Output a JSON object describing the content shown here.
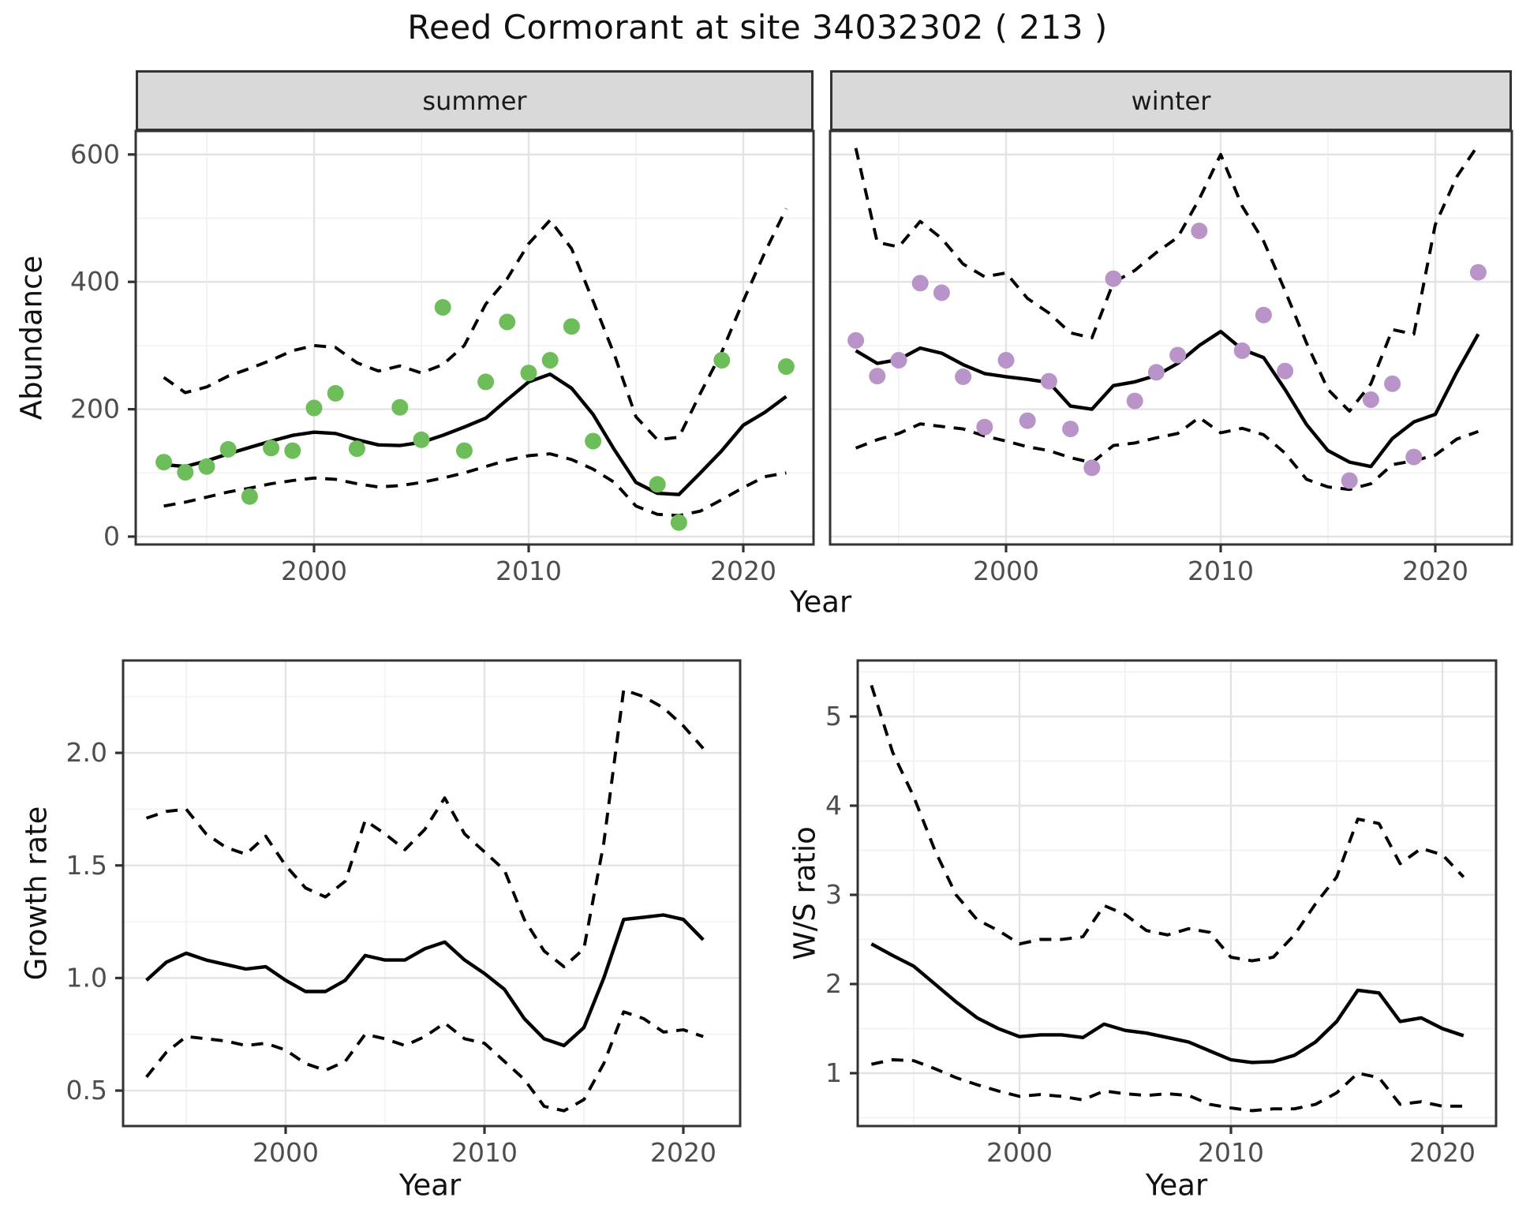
{
  "title": "Reed Cormorant at site 34032302 ( 213 )",
  "facets": [
    {
      "label": "summer"
    },
    {
      "label": "winter"
    }
  ],
  "axes": {
    "abundance": "Abundance",
    "year": "Year",
    "growth": "Growth rate",
    "ws": "W/S ratio"
  },
  "colors": {
    "summer_point": "#6dbe5a",
    "winter_point": "#b894c9",
    "line": "#000000",
    "strip_bg": "#d9d9d9",
    "panel_border": "#333333",
    "grid_major": "#e3e3e3",
    "grid_minor": "#f0f0f0",
    "tick_label": "#4d4d4d",
    "background": "#ffffff"
  },
  "chart_data": [
    {
      "id": "abundance-summer",
      "type": "scatter",
      "facet": "summer",
      "xlabel": "Year",
      "ylabel": "Abundance",
      "x_ticks": [
        2000,
        2010,
        2020
      ],
      "x_minor_ticks": [
        1995,
        2005,
        2015
      ],
      "y_ticks": [
        0,
        200,
        400,
        600
      ],
      "y_tick_labels": [
        "0",
        "200",
        "400",
        "600"
      ],
      "y_minor_ticks": [
        100,
        300,
        500
      ],
      "x_range": [
        1991.7,
        2023.3
      ],
      "y_range": [
        -12,
        656
      ],
      "points": {
        "years": [
          1993,
          1994,
          1995,
          1996,
          1997,
          1998,
          1999,
          2000,
          2001,
          2002,
          2004,
          2005,
          2006,
          2007,
          2008,
          2009,
          2010,
          2011,
          2012,
          2013,
          2016,
          2017,
          2019,
          2022
        ],
        "values": [
          117,
          101,
          110,
          137,
          63,
          139,
          135,
          202,
          225,
          138,
          203,
          152,
          360,
          135,
          243,
          337,
          257,
          277,
          330,
          150,
          82,
          22,
          277,
          267
        ]
      },
      "series_year_start": 1993,
      "series": [
        {
          "name": "fit",
          "style": "solid",
          "values": [
            113,
            110,
            119,
            130,
            140,
            150,
            159,
            164,
            162,
            152,
            144,
            143,
            148,
            159,
            172,
            186,
            215,
            243,
            255,
            233,
            192,
            136,
            85,
            68,
            66,
            100,
            135,
            175,
            195,
            220
          ]
        },
        {
          "name": "upper_ci",
          "style": "dashed",
          "values": [
            250,
            226,
            235,
            252,
            264,
            277,
            292,
            300,
            297,
            273,
            260,
            268,
            257,
            270,
            300,
            365,
            405,
            460,
            497,
            452,
            370,
            285,
            188,
            152,
            156,
            225,
            290,
            370,
            446,
            515
          ]
        },
        {
          "name": "lower_ci",
          "style": "dashed",
          "values": [
            48,
            54,
            62,
            70,
            76,
            83,
            88,
            92,
            90,
            83,
            78,
            80,
            85,
            92,
            100,
            110,
            120,
            127,
            130,
            121,
            106,
            85,
            48,
            35,
            33,
            40,
            58,
            77,
            94,
            100
          ]
        }
      ]
    },
    {
      "id": "abundance-winter",
      "type": "scatter",
      "facet": "winter",
      "xlabel": "Year",
      "ylabel": "Abundance",
      "x_ticks": [
        2000,
        2010,
        2020
      ],
      "x_minor_ticks": [
        1995,
        2005,
        2015
      ],
      "y_ticks": [
        0,
        200,
        400,
        600
      ],
      "y_tick_labels": [
        "0",
        "200",
        "400",
        "600"
      ],
      "y_minor_ticks": [
        100,
        300,
        500
      ],
      "x_range": [
        1991.8,
        2023.6
      ],
      "y_range": [
        -12,
        656
      ],
      "points": {
        "years": [
          1993,
          1994,
          1995,
          1996,
          1997,
          1998,
          1999,
          2000,
          2001,
          2002,
          2003,
          2004,
          2005,
          2006,
          2007,
          2008,
          2009,
          2011,
          2012,
          2013,
          2016,
          2017,
          2018,
          2019,
          2022
        ],
        "values": [
          308,
          252,
          277,
          398,
          383,
          251,
          172,
          277,
          182,
          244,
          169,
          108,
          405,
          213,
          258,
          285,
          480,
          292,
          348,
          260,
          88,
          215,
          240,
          125,
          415
        ]
      },
      "series_year_start": 1993,
      "series": [
        {
          "name": "fit",
          "style": "solid",
          "values": [
            292,
            272,
            278,
            296,
            288,
            270,
            256,
            251,
            247,
            242,
            205,
            200,
            237,
            243,
            253,
            272,
            300,
            322,
            294,
            281,
            231,
            176,
            135,
            117,
            110,
            154,
            180,
            192,
            258,
            318
          ]
        },
        {
          "name": "upper_ci",
          "style": "dashed",
          "values": [
            610,
            462,
            455,
            495,
            468,
            428,
            408,
            414,
            374,
            351,
            320,
            312,
            399,
            418,
            446,
            470,
            530,
            600,
            519,
            464,
            386,
            304,
            231,
            197,
            240,
            325,
            318,
            490,
            565,
            615
          ]
        },
        {
          "name": "lower_ci",
          "style": "dashed",
          "values": [
            139,
            152,
            162,
            177,
            173,
            169,
            158,
            150,
            141,
            135,
            124,
            116,
            143,
            147,
            155,
            162,
            187,
            163,
            170,
            160,
            131,
            90,
            78,
            74,
            83,
            113,
            119,
            128,
            153,
            165
          ]
        }
      ]
    },
    {
      "id": "growth-rate",
      "type": "line",
      "facet": null,
      "xlabel": "Year",
      "ylabel": "Growth rate",
      "x_ticks": [
        2000,
        2010,
        2020
      ],
      "x_minor_ticks": [
        1995,
        2005,
        2015
      ],
      "y_ticks": [
        0.5,
        1.0,
        1.5,
        2.0
      ],
      "y_tick_labels": [
        "0.5",
        "1.0",
        "1.5",
        "2.0"
      ],
      "y_minor_ticks": [
        0.75,
        1.25,
        1.75,
        2.25
      ],
      "x_range": [
        1991.7,
        2022.9
      ],
      "y_range": [
        0.31,
        2.41
      ],
      "points": null,
      "series_year_start": 1993,
      "series": [
        {
          "name": "fit",
          "style": "solid",
          "values": [
            0.99,
            1.07,
            1.11,
            1.08,
            1.06,
            1.04,
            1.05,
            0.99,
            0.94,
            0.94,
            0.99,
            1.1,
            1.08,
            1.08,
            1.13,
            1.16,
            1.08,
            1.02,
            0.95,
            0.82,
            0.73,
            0.7,
            0.78,
            1.0,
            1.26,
            1.27,
            1.28,
            1.26,
            1.17
          ]
        },
        {
          "name": "upper_ci",
          "style": "dashed",
          "values": [
            1.71,
            1.74,
            1.75,
            1.64,
            1.58,
            1.55,
            1.63,
            1.5,
            1.4,
            1.36,
            1.43,
            1.7,
            1.64,
            1.57,
            1.66,
            1.8,
            1.64,
            1.56,
            1.48,
            1.26,
            1.12,
            1.05,
            1.13,
            1.6,
            2.28,
            2.25,
            2.2,
            2.12,
            2.02
          ]
        },
        {
          "name": "lower_ci",
          "style": "dashed",
          "values": [
            0.56,
            0.67,
            0.74,
            0.73,
            0.72,
            0.7,
            0.71,
            0.68,
            0.62,
            0.59,
            0.63,
            0.75,
            0.73,
            0.7,
            0.74,
            0.8,
            0.73,
            0.71,
            0.63,
            0.55,
            0.43,
            0.41,
            0.46,
            0.62,
            0.85,
            0.82,
            0.76,
            0.77,
            0.74
          ]
        }
      ]
    },
    {
      "id": "ws-ratio",
      "type": "line",
      "facet": null,
      "xlabel": "Year",
      "ylabel": "W/S ratio",
      "x_ticks": [
        2000,
        2010,
        2020
      ],
      "x_minor_ticks": [
        1995,
        2005,
        2015
      ],
      "y_ticks": [
        1,
        2,
        3,
        4,
        5
      ],
      "y_tick_labels": [
        "1",
        "2",
        "3",
        "4",
        "5"
      ],
      "y_minor_ticks": [
        0.5,
        1.5,
        2.5,
        3.5,
        4.5,
        5.5
      ],
      "x_range": [
        1991.8,
        2022.5
      ],
      "y_range": [
        0.41,
        5.63
      ],
      "points": null,
      "series_year_start": 1993,
      "series": [
        {
          "name": "fit",
          "style": "solid",
          "values": [
            2.45,
            2.32,
            2.2,
            2.0,
            1.8,
            1.62,
            1.5,
            1.41,
            1.43,
            1.43,
            1.4,
            1.55,
            1.48,
            1.45,
            1.4,
            1.35,
            1.25,
            1.15,
            1.12,
            1.13,
            1.2,
            1.35,
            1.58,
            1.93,
            1.9,
            1.58,
            1.62,
            1.5,
            1.42
          ]
        },
        {
          "name": "upper_ci",
          "style": "dashed",
          "values": [
            5.35,
            4.6,
            4.1,
            3.5,
            3.0,
            2.72,
            2.6,
            2.45,
            2.5,
            2.5,
            2.53,
            2.88,
            2.78,
            2.6,
            2.55,
            2.62,
            2.58,
            2.3,
            2.26,
            2.3,
            2.55,
            2.9,
            3.2,
            3.85,
            3.8,
            3.35,
            3.52,
            3.45,
            3.2
          ]
        },
        {
          "name": "lower_ci",
          "style": "dashed",
          "values": [
            1.1,
            1.15,
            1.14,
            1.05,
            0.95,
            0.87,
            0.8,
            0.74,
            0.76,
            0.74,
            0.7,
            0.8,
            0.77,
            0.75,
            0.77,
            0.75,
            0.65,
            0.61,
            0.58,
            0.6,
            0.6,
            0.65,
            0.78,
            1.0,
            0.95,
            0.65,
            0.68,
            0.63,
            0.63
          ]
        }
      ]
    }
  ]
}
